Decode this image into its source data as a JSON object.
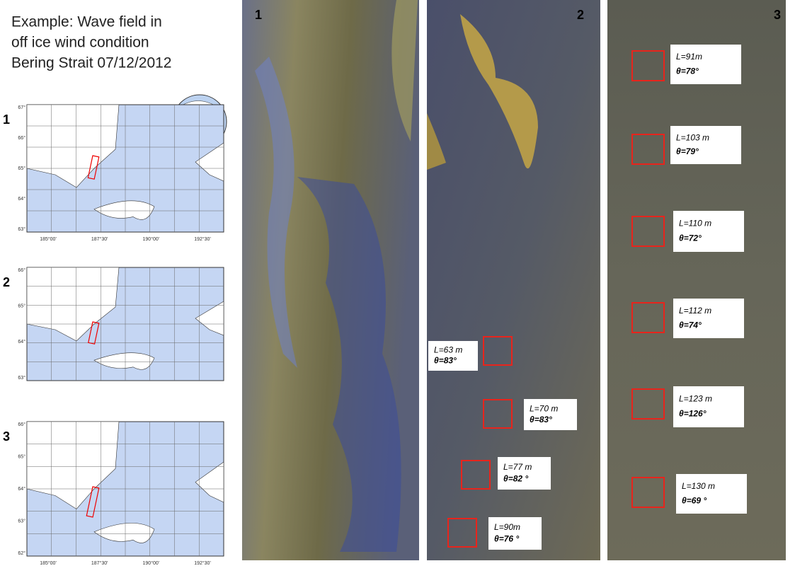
{
  "title": [
    "Example:  Wave field in",
    "off ice wind condition",
    "Bering Strait 07/12/2012"
  ],
  "maps": [
    {
      "label": "1",
      "lat_labels": [
        "67°",
        "66°",
        "65°",
        "64°",
        "63°"
      ],
      "lon_labels": [
        "185°00'",
        "187°30'",
        "190°00'",
        "192°30'"
      ]
    },
    {
      "label": "2",
      "lat_labels": [
        "66°",
        "65°",
        "64°",
        "63°"
      ],
      "lon_labels": []
    },
    {
      "label": "3",
      "lat_labels": [
        "66°",
        "65°",
        "64°",
        "63°",
        "62°"
      ],
      "lon_labels": [
        "185°00'",
        "187°30'",
        "190°00'",
        "192°30'"
      ]
    }
  ],
  "panels": [
    {
      "label": "1",
      "annotations": []
    },
    {
      "label": "2",
      "annotations": [
        {
          "length": "L=63 m",
          "angle": "θ=83°"
        },
        {
          "length": "L=70 m",
          "angle": "θ=83°"
        },
        {
          "length": "L=77 m",
          "angle": "θ=82 °"
        },
        {
          "length": "L=90m",
          "angle": "θ=76 °"
        }
      ]
    },
    {
      "label": "3",
      "annotations": [
        {
          "length": "L=91m",
          "angle": "θ=78°"
        },
        {
          "length": "L=103 m",
          "angle": "θ=79°"
        },
        {
          "length": "L=110 m",
          "angle": "θ=72°"
        },
        {
          "length": "L=112 m",
          "angle": "θ=74°"
        },
        {
          "length": "L=123 m",
          "angle": "θ=126°"
        },
        {
          "length": "L=130 m",
          "angle": "θ=69 °"
        }
      ]
    }
  ]
}
